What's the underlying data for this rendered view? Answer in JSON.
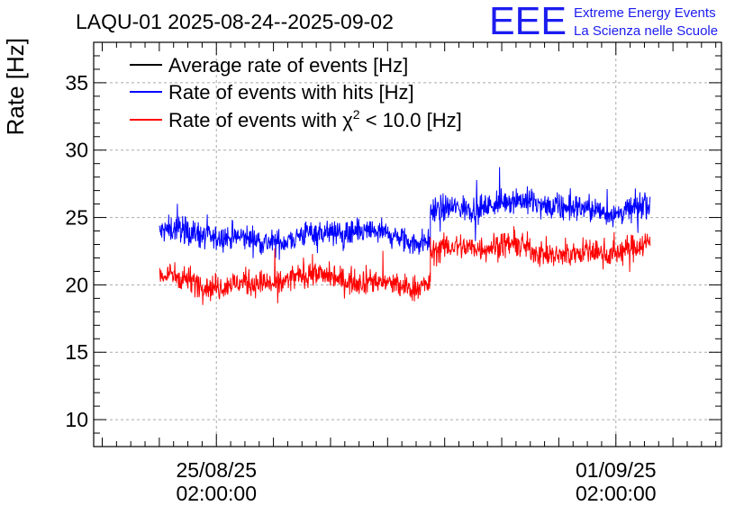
{
  "chart_data": {
    "type": "line",
    "title": "LAQU-01 2025-08-24--2025-09-02",
    "ylabel": "Rate [Hz]",
    "xlabel": "",
    "ylim": [
      8,
      38
    ],
    "yticks": [
      10,
      15,
      20,
      25,
      30,
      35
    ],
    "xticks": [
      {
        "date": "25/08/25",
        "time": "02:00:00",
        "pos_days": 1.0
      },
      {
        "date": "01/09/25",
        "time": "02:00:00",
        "pos_days": 8.0
      }
    ],
    "xlim_days": [
      -1.15,
      9.85
    ],
    "grid": true,
    "legend_position": "top-left",
    "series": [
      {
        "name": "Average rate of events [Hz]",
        "legend": "Average rate of events [Hz]",
        "color": "#000000",
        "segments": []
      },
      {
        "name": "Rate of events with hits [Hz]",
        "legend": "Rate of events with hits [Hz]",
        "color": "#0000ff",
        "segments": [
          {
            "x_start": 0.0,
            "x_end": 4.75,
            "mean": 23.6,
            "spread": 0.9
          },
          {
            "x_start": 4.75,
            "x_end": 8.6,
            "mean": 25.8,
            "spread": 0.9
          }
        ]
      },
      {
        "name": "Rate of events with chi2 < 10.0 [Hz]",
        "legend_prefix": "Rate of events with ",
        "legend_chi": "χ",
        "legend_sup": "2",
        "legend_suffix": " < 10.0 [Hz]",
        "color": "#ff0000",
        "segments": [
          {
            "x_start": 0.0,
            "x_end": 4.75,
            "mean": 20.3,
            "spread": 0.9
          },
          {
            "x_start": 4.75,
            "x_end": 8.6,
            "mean": 22.6,
            "spread": 0.9
          }
        ]
      }
    ]
  },
  "branding": {
    "logo": "EEE",
    "line1": "Extreme Energy Events",
    "line2": "La Scienza nelle Scuole",
    "color": "#1c1cf0"
  }
}
